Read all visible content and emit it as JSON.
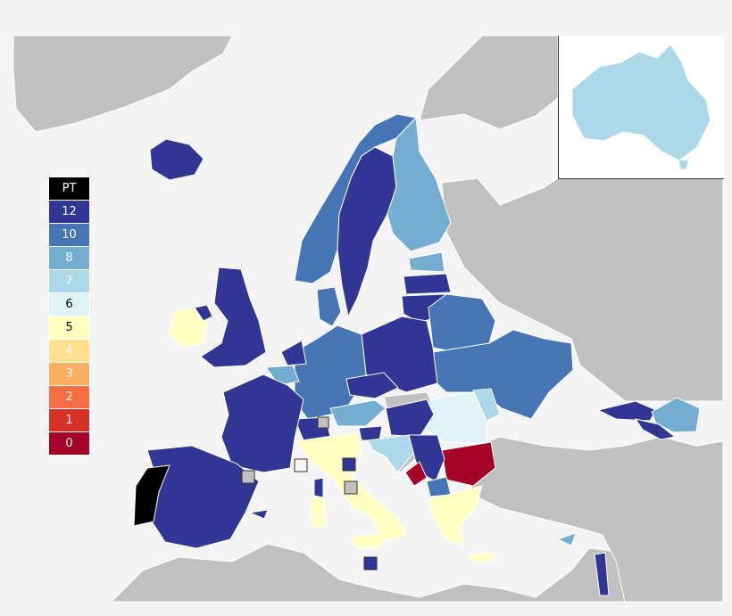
{
  "legend": {
    "items": [
      {
        "label": "PT",
        "color": "#000000",
        "text_color": "#ffffff"
      },
      {
        "label": "12",
        "color": "#313695",
        "text_color": "#ffffff"
      },
      {
        "label": "10",
        "color": "#4575b4",
        "text_color": "#ffffff"
      },
      {
        "label": "8",
        "color": "#74add1",
        "text_color": "#ffffff"
      },
      {
        "label": "7",
        "color": "#abd9e9",
        "text_color": "#ffffff"
      },
      {
        "label": "6",
        "color": "#e0f3f8",
        "text_color": "#000000"
      },
      {
        "label": "5",
        "color": "#ffffbf",
        "text_color": "#000000"
      },
      {
        "label": "4",
        "color": "#fee090",
        "text_color": "#ffffff"
      },
      {
        "label": "3",
        "color": "#fdae61",
        "text_color": "#ffffff"
      },
      {
        "label": "2",
        "color": "#f46d43",
        "text_color": "#ffffff"
      },
      {
        "label": "1",
        "color": "#d73027",
        "text_color": "#ffffff"
      },
      {
        "label": "0",
        "color": "#a50026",
        "text_color": "#ffffff"
      }
    ]
  },
  "colors": {
    "sea": "#f4f4f4",
    "non_participant": "#c0c0c0",
    "border": "#ffffff"
  },
  "regions": [
    {
      "name": "Portugal",
      "points": "PT"
    },
    {
      "name": "Spain",
      "points": "12"
    },
    {
      "name": "France",
      "points": "12"
    },
    {
      "name": "United Kingdom",
      "points": "12"
    },
    {
      "name": "Ireland",
      "points": "5"
    },
    {
      "name": "Iceland",
      "points": "12"
    },
    {
      "name": "Norway",
      "points": "10"
    },
    {
      "name": "Sweden",
      "points": "12"
    },
    {
      "name": "Finland",
      "points": "8"
    },
    {
      "name": "Denmark",
      "points": "10"
    },
    {
      "name": "Estonia",
      "points": "8"
    },
    {
      "name": "Latvia",
      "points": "12"
    },
    {
      "name": "Lithuania",
      "points": "12"
    },
    {
      "name": "Belarus",
      "points": "10"
    },
    {
      "name": "Poland",
      "points": "12"
    },
    {
      "name": "Germany",
      "points": "10"
    },
    {
      "name": "Netherlands",
      "points": "12"
    },
    {
      "name": "Belgium",
      "points": "8"
    },
    {
      "name": "Ukraine",
      "points": "10"
    },
    {
      "name": "Moldova",
      "points": "7"
    },
    {
      "name": "Romania",
      "points": "6"
    },
    {
      "name": "Bulgaria",
      "points": "0"
    },
    {
      "name": "Czech Republic",
      "points": "12"
    },
    {
      "name": "Austria",
      "points": "8"
    },
    {
      "name": "Hungary",
      "points": "12"
    },
    {
      "name": "Switzerland",
      "points": "12"
    },
    {
      "name": "Italy",
      "points": "5"
    },
    {
      "name": "Slovenia",
      "points": "12"
    },
    {
      "name": "Croatia",
      "points": "7"
    },
    {
      "name": "Serbia",
      "points": "12"
    },
    {
      "name": "Montenegro",
      "points": "0"
    },
    {
      "name": "North Macedonia",
      "points": "10"
    },
    {
      "name": "Greece",
      "points": "5"
    },
    {
      "name": "Cyprus",
      "points": "8"
    },
    {
      "name": "Israel",
      "points": "12"
    },
    {
      "name": "Georgia",
      "points": "12"
    },
    {
      "name": "Armenia",
      "points": "8"
    },
    {
      "name": "Azerbaijan",
      "points": "12"
    },
    {
      "name": "Australia",
      "points": "7"
    },
    {
      "name": "San Marino",
      "points": "12"
    },
    {
      "name": "Malta",
      "points": "12"
    }
  ]
}
